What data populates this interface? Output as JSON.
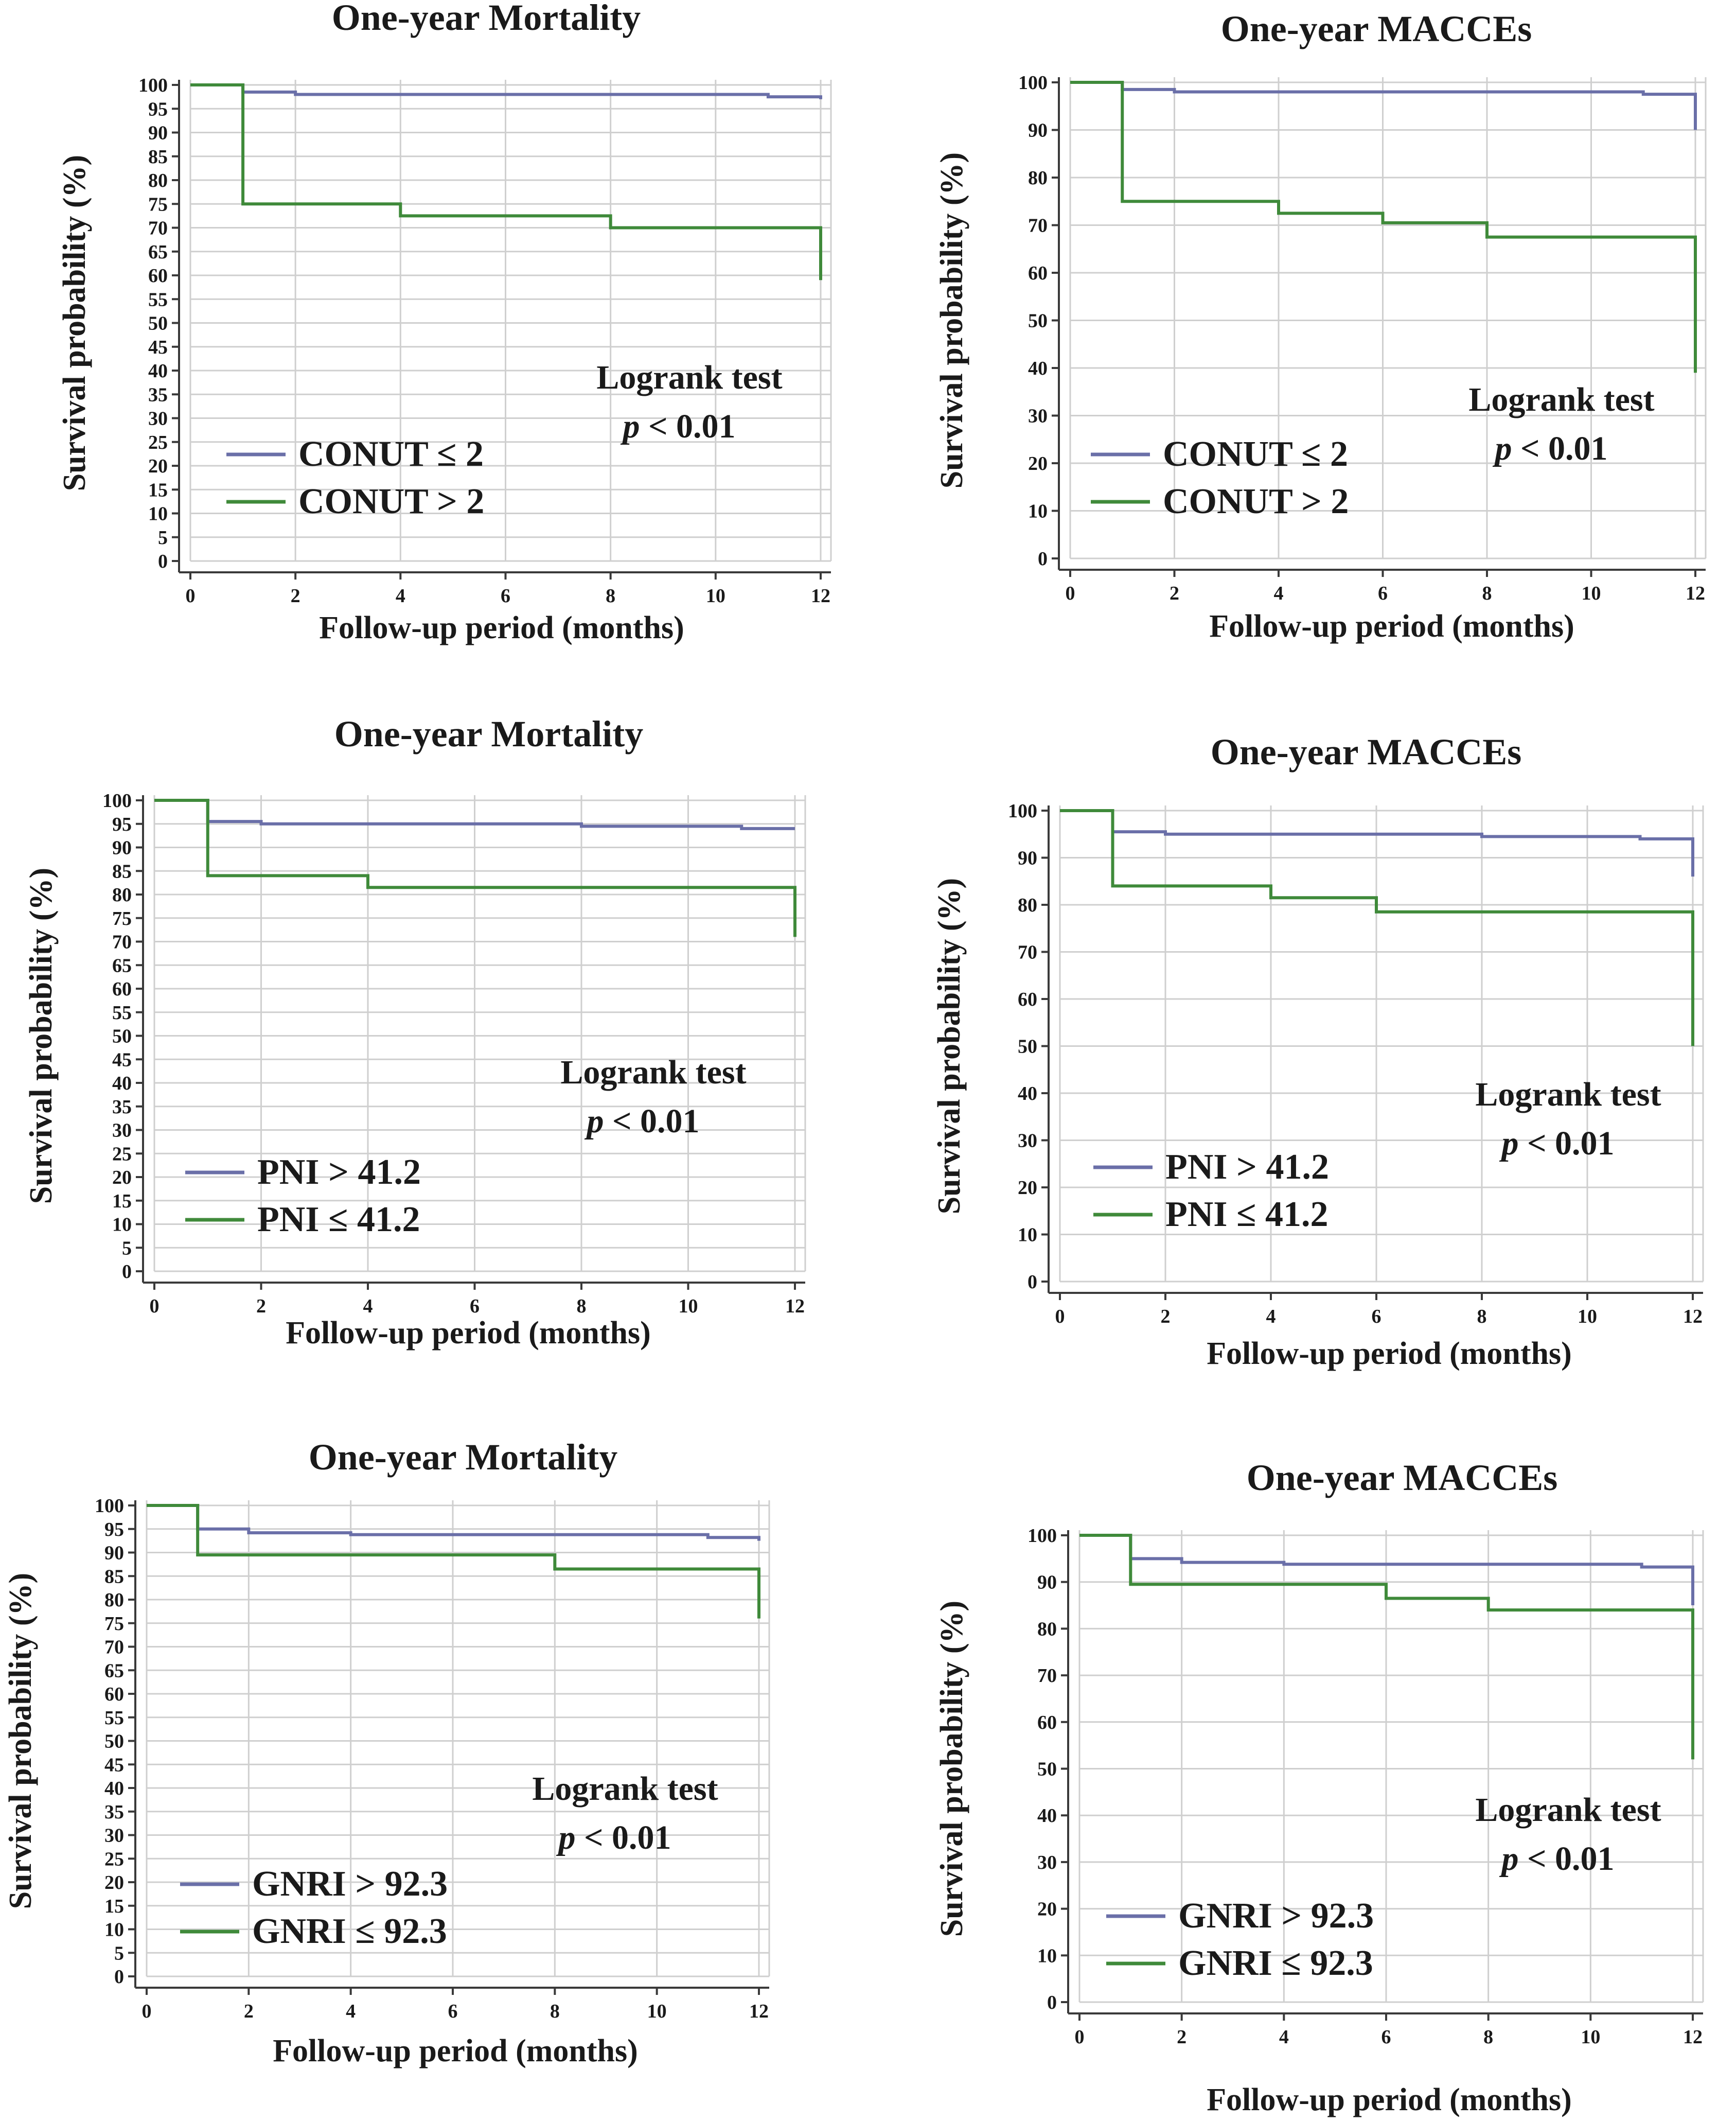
{
  "figure": {
    "panels": [
      {
        "id": "conut-mortality",
        "title": "One-year Mortality"
      },
      {
        "id": "conut-macces",
        "title": "One-year MACCEs"
      },
      {
        "id": "pni-mortality",
        "title": "One-year Mortality"
      },
      {
        "id": "pni-macces",
        "title": "One-year MACCEs"
      },
      {
        "id": "gnri-mortality",
        "title": "One-year Mortality"
      },
      {
        "id": "gnri-macces",
        "title": "One-year MACCEs"
      }
    ]
  },
  "colors": {
    "series_a": "#6a6fa8",
    "series_b": "#3f8a3a"
  },
  "chart_data": [
    {
      "type": "line",
      "step": true,
      "title": "One-year Mortality",
      "xlabel": "Follow-up period (months)",
      "ylabel": "Survival probability (%)",
      "xlim": [
        0,
        12
      ],
      "ylim": [
        0,
        100
      ],
      "xticks": [
        0,
        2,
        4,
        6,
        8,
        10,
        12
      ],
      "yticks": [
        0,
        5,
        10,
        15,
        20,
        25,
        30,
        35,
        40,
        45,
        50,
        55,
        60,
        65,
        70,
        75,
        80,
        85,
        90,
        95,
        100
      ],
      "grid": true,
      "annotation": {
        "test": "Logrank test",
        "p": "p < 0.01"
      },
      "series": [
        {
          "name": "CONUT ≤ 2",
          "color": "#6a6fa8",
          "x": [
            0,
            1,
            2,
            11,
            12,
            12
          ],
          "y": [
            100,
            98.5,
            98,
            97.5,
            97,
            97
          ]
        },
        {
          "name": "CONUT > 2",
          "color": "#3f8a3a",
          "x": [
            0,
            1,
            4,
            8,
            12,
            12
          ],
          "y": [
            100,
            75,
            72.5,
            70,
            70,
            59
          ]
        }
      ]
    },
    {
      "type": "line",
      "step": true,
      "title": "One-year MACCEs",
      "xlabel": "Follow-up period (months)",
      "ylabel": "Survival probability (%)",
      "xlim": [
        0,
        12
      ],
      "ylim": [
        0,
        100
      ],
      "xticks": [
        0,
        2,
        4,
        6,
        8,
        10,
        12
      ],
      "yticks": [
        0,
        10,
        20,
        30,
        40,
        50,
        60,
        70,
        80,
        90,
        100
      ],
      "grid": true,
      "annotation": {
        "test": "Logrank test",
        "p": "p < 0.01"
      },
      "series": [
        {
          "name": "CONUT ≤ 2",
          "color": "#6a6fa8",
          "x": [
            0,
            1,
            2,
            11,
            12,
            12
          ],
          "y": [
            100,
            98.5,
            98,
            97.5,
            97,
            90
          ]
        },
        {
          "name": "CONUT > 2",
          "color": "#3f8a3a",
          "x": [
            0,
            1,
            4,
            6,
            8,
            12,
            12
          ],
          "y": [
            100,
            75,
            72.5,
            70.5,
            67.5,
            67.5,
            39
          ]
        }
      ]
    },
    {
      "type": "line",
      "step": true,
      "title": "One-year Mortality",
      "xlabel": "Follow-up period (months)",
      "ylabel": "Survival probability (%)",
      "xlim": [
        0,
        12
      ],
      "ylim": [
        0,
        100
      ],
      "xticks": [
        0,
        2,
        4,
        6,
        8,
        10,
        12
      ],
      "yticks": [
        0,
        5,
        10,
        15,
        20,
        25,
        30,
        35,
        40,
        45,
        50,
        55,
        60,
        65,
        70,
        75,
        80,
        85,
        90,
        95,
        100
      ],
      "grid": true,
      "annotation": {
        "test": "Logrank test",
        "p": "p < 0.01"
      },
      "series": [
        {
          "name": "PNI > 41.2",
          "color": "#6a6fa8",
          "x": [
            0,
            1,
            2,
            8,
            11,
            12,
            12
          ],
          "y": [
            100,
            95.5,
            95,
            94.5,
            94,
            94,
            94
          ]
        },
        {
          "name": "PNI ≤ 41.2",
          "color": "#3f8a3a",
          "x": [
            0,
            1,
            4,
            12,
            12
          ],
          "y": [
            100,
            84,
            81.5,
            81.5,
            71
          ]
        }
      ]
    },
    {
      "type": "line",
      "step": true,
      "title": "One-year MACCEs",
      "xlabel": "Follow-up period (months)",
      "ylabel": "Survival probability (%)",
      "xlim": [
        0,
        12
      ],
      "ylim": [
        0,
        100
      ],
      "xticks": [
        0,
        2,
        4,
        6,
        8,
        10,
        12
      ],
      "yticks": [
        0,
        10,
        20,
        30,
        40,
        50,
        60,
        70,
        80,
        90,
        100
      ],
      "grid": true,
      "annotation": {
        "test": "Logrank test",
        "p": "p < 0.01"
      },
      "series": [
        {
          "name": "PNI > 41.2",
          "color": "#6a6fa8",
          "x": [
            0,
            1,
            2,
            8,
            11,
            12,
            12
          ],
          "y": [
            100,
            95.5,
            95,
            94.5,
            94,
            94,
            86
          ]
        },
        {
          "name": "PNI ≤ 41.2",
          "color": "#3f8a3a",
          "x": [
            0,
            1,
            4,
            6,
            12,
            12
          ],
          "y": [
            100,
            84,
            81.5,
            78.5,
            78.5,
            50
          ]
        }
      ]
    },
    {
      "type": "line",
      "step": true,
      "title": "One-year Mortality",
      "xlabel": "Follow-up period (months)",
      "ylabel": "Survival probability (%)",
      "xlim": [
        0,
        12
      ],
      "ylim": [
        0,
        100
      ],
      "xticks": [
        0,
        2,
        4,
        6,
        8,
        10,
        12
      ],
      "yticks": [
        0,
        5,
        10,
        15,
        20,
        25,
        30,
        35,
        40,
        45,
        50,
        55,
        60,
        65,
        70,
        75,
        80,
        85,
        90,
        95,
        100
      ],
      "grid": true,
      "annotation": {
        "test": "Logrank test",
        "p": "p < 0.01"
      },
      "series": [
        {
          "name": "GNRI > 92.3",
          "color": "#6a6fa8",
          "x": [
            0,
            1,
            2,
            4,
            11,
            12,
            12
          ],
          "y": [
            100,
            95,
            94.2,
            93.8,
            93.2,
            92.5,
            92.5
          ]
        },
        {
          "name": "GNRI ≤ 92.3",
          "color": "#3f8a3a",
          "x": [
            0,
            1,
            8,
            12,
            12
          ],
          "y": [
            100,
            89.5,
            86.5,
            86.5,
            76
          ]
        }
      ]
    },
    {
      "type": "line",
      "step": true,
      "title": "One-year MACCEs",
      "xlabel": "Follow-up period (months)",
      "ylabel": "Survival probability (%)",
      "xlim": [
        0,
        12
      ],
      "ylim": [
        0,
        100
      ],
      "xticks": [
        0,
        2,
        4,
        6,
        8,
        10,
        12
      ],
      "yticks": [
        0,
        10,
        20,
        30,
        40,
        50,
        60,
        70,
        80,
        90,
        100
      ],
      "grid": true,
      "annotation": {
        "test": "Logrank test",
        "p": "p < 0.01"
      },
      "series": [
        {
          "name": "GNRI > 92.3",
          "color": "#6a6fa8",
          "x": [
            0,
            1,
            2,
            4,
            11,
            12,
            12
          ],
          "y": [
            100,
            95,
            94.2,
            93.8,
            93.2,
            92.5,
            85
          ]
        },
        {
          "name": "GNRI ≤ 92.3",
          "color": "#3f8a3a",
          "x": [
            0,
            1,
            6,
            8,
            12,
            12
          ],
          "y": [
            100,
            89.5,
            86.5,
            84,
            84,
            52
          ]
        }
      ]
    }
  ]
}
